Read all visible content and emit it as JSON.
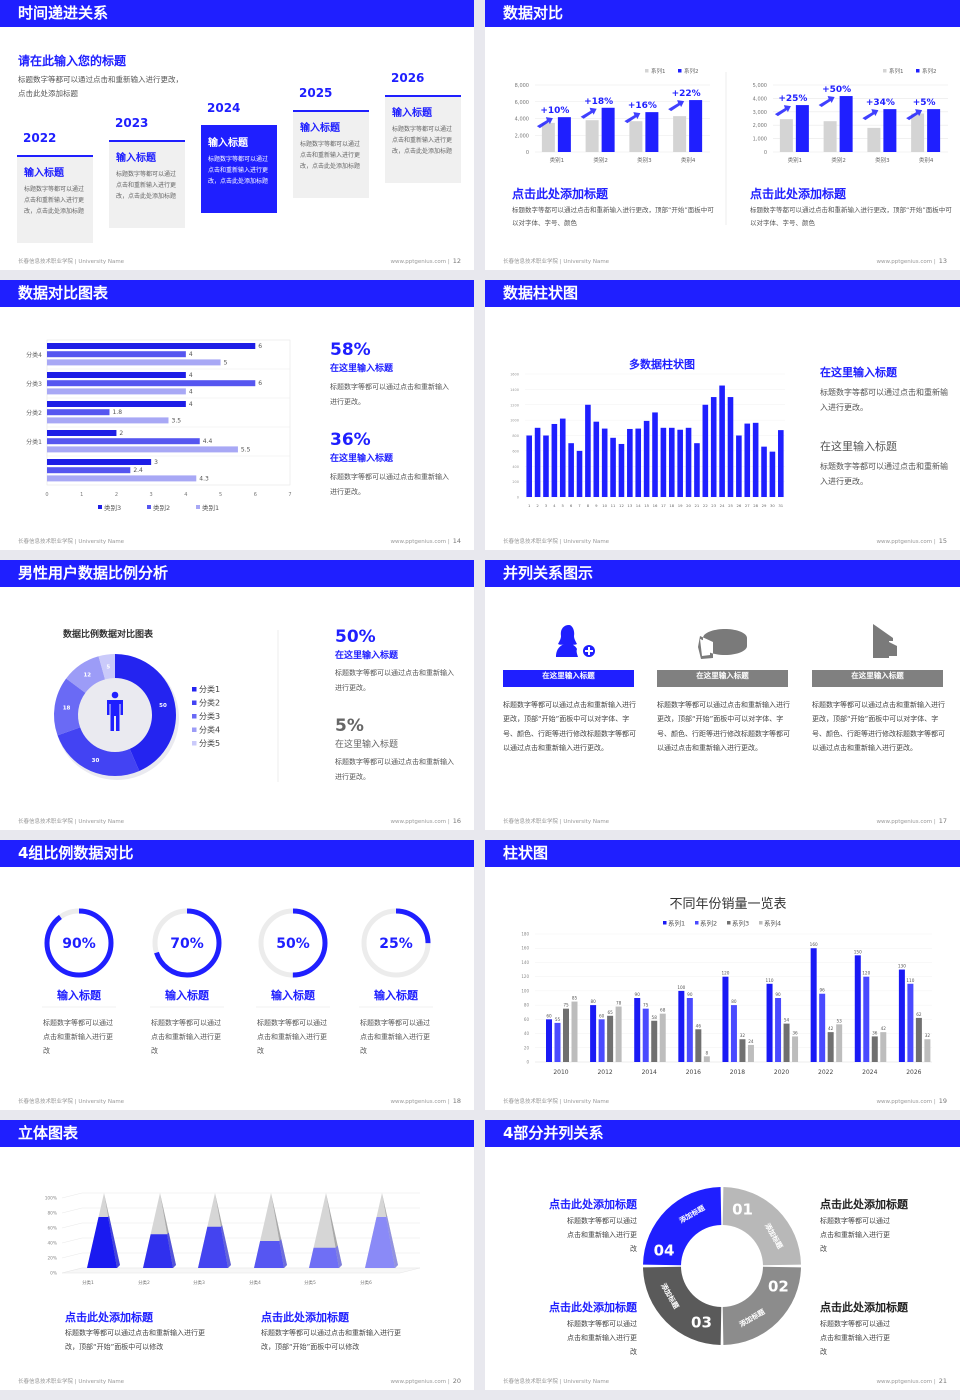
{
  "colors": {
    "primary": "#1f1fff",
    "light_gray": "#d4d4d4",
    "mid_gray": "#808080",
    "background": "#e8e8ee"
  },
  "footer": {
    "school": "长春信息技术职业学院 | University Name",
    "site": "www.pptgenius.com |"
  },
  "slides": [
    {
      "title": "时间递进关系",
      "page": "12",
      "heading": "请在此输入您的标题",
      "desc": "标题数字等都可以通过点击和重新输入进行更改，点击此处添加标题",
      "items": [
        {
          "year": "2022",
          "title": "输入标题",
          "desc": "标题数字等都可以通过点击和重新输入进行更改，点击此处添加标题"
        },
        {
          "year": "2023",
          "title": "输入标题",
          "desc": "标题数字等都可以通过点击和重新输入进行更改，点击此处添加标题"
        },
        {
          "year": "2024",
          "title": "输入标题",
          "desc": "标题数字等都可以通过点击和重新输入进行更改，点击此处添加标题"
        },
        {
          "year": "2025",
          "title": "输入标题",
          "desc": "标题数字等都可以通过点击和重新输入进行更改，点击此处添加标题"
        },
        {
          "year": "2026",
          "title": "输入标题",
          "desc": "标题数字等都可以通过点击和重新输入进行更改，点击此处添加标题"
        }
      ]
    },
    {
      "title": "数据对比",
      "page": "13",
      "blocks": [
        {
          "heading": "点击此处添加标题",
          "desc": "标题数字等都可以通过点击和重新输入进行更改，顶部“开始”面板中可以对字体、字号、颜色"
        },
        {
          "heading": "点击此处添加标题",
          "desc": "标题数字等都可以通过点击和重新输入进行更改，顶部“开始”面板中可以对字体、字号、颜色"
        }
      ]
    },
    {
      "title": "数据对比图表",
      "page": "14",
      "stats": [
        {
          "value": "58%",
          "title": "在这里输入标题",
          "desc": "标题数字等都可以通过点击和重新输入进行更改。"
        },
        {
          "value": "36%",
          "title": "在这里输入标题",
          "desc": "标题数字等都可以通过点击和重新输入进行更改。"
        }
      ]
    },
    {
      "title": "数据柱状图",
      "page": "15",
      "texts": [
        {
          "title": "在这里输入标题",
          "desc": "标题数字等都可以通过点击和重新输入进行更改。"
        },
        {
          "title": "在这里输入标题",
          "desc": "标题数字等都可以通过点击和重新输入进行更改。"
        }
      ]
    },
    {
      "title": "男性用户数据比例分析",
      "page": "16",
      "icon": "male-user-icon",
      "stats": [
        {
          "value": "50%",
          "title": "在这里输入标题",
          "desc": "标题数字等都可以通过点击和重新输入进行更改。"
        },
        {
          "value": "5%",
          "title": "在这里输入标题",
          "desc": "标题数字等都可以通过点击和重新输入进行更改。"
        }
      ]
    },
    {
      "title": "并列关系图示",
      "page": "17",
      "columns": [
        {
          "icon": "female-user-add-icon",
          "label": "在这里输入标题",
          "desc": "标题数字等都可以通过点击和重新输入进行更改，顶部“开始”面板中可以对字体、字号、颜色、行距等进行修改标题数字等都可以通过点击和重新输入进行更改。"
        },
        {
          "icon": "pie-chart-3d-icon",
          "label": "在这里输入标题",
          "desc": "标题数字等都可以通过点击和重新输入进行更改，顶部“开始”面板中可以对字体、字号、颜色、行距等进行修改标题数字等都可以通过点击和重新输入进行更改。"
        },
        {
          "icon": "building-icon",
          "label": "在这里输入标题",
          "desc": "标题数字等都可以通过点击和重新输入进行更改，顶部“开始”面板中可以对字体、字号、颜色、行距等进行修改标题数字等都可以通过点击和重新输入进行更改。"
        }
      ]
    },
    {
      "title": "4组比例数据对比",
      "page": "18",
      "items": [
        {
          "label": "90%",
          "title": "输入标题",
          "desc": "标题数字等都可以通过点击和重新输入进行更改"
        },
        {
          "label": "70%",
          "title": "输入标题",
          "desc": "标题数字等都可以通过点击和重新输入进行更改"
        },
        {
          "label": "50%",
          "title": "输入标题",
          "desc": "标题数字等都可以通过点击和重新输入进行更改"
        },
        {
          "label": "25%",
          "title": "输入标题",
          "desc": "标题数字等都可以通过点击和重新输入进行更改"
        }
      ]
    },
    {
      "title": "柱状图",
      "page": "19"
    },
    {
      "title": "立体图表",
      "page": "20",
      "blocks": [
        {
          "heading": "点击此处添加标题",
          "desc": "标题数字等都可以通过点击和重新输入进行更改，顶部“开始”面板中可以修改"
        },
        {
          "heading": "点击此处添加标题",
          "desc": "标题数字等都可以通过点击和重新输入进行更改，顶部“开始”面板中可以修改"
        }
      ]
    },
    {
      "title": "4部分并列关系",
      "page": "21",
      "segments": [
        {
          "number": "01",
          "label": "添加标题",
          "color": "#b8b8b8"
        },
        {
          "number": "02",
          "label": "添加标题",
          "color": "#8c8c8c"
        },
        {
          "number": "03",
          "label": "添加标题",
          "color": "#5a5a5a"
        },
        {
          "number": "04",
          "label": "添加标题",
          "color": "#1f1fff"
        }
      ],
      "texts": [
        {
          "title": "点击此处添加标题",
          "desc": "标题数字等都可以通过点击和重新输入进行更改"
        },
        {
          "title": "点击此处添加标题",
          "desc": "标题数字等都可以通过点击和重新输入进行更改"
        },
        {
          "title": "点击此处添加标题",
          "desc": "标题数字等都可以通过点击和重新输入进行更改"
        },
        {
          "title": "点击此处添加标题",
          "desc": "标题数字等都可以通过点击和重新输入进行更改"
        }
      ]
    }
  ],
  "chart_data": [
    {
      "type": "bar",
      "categories": [
        "类别1",
        "类别2",
        "类别3",
        "类别4"
      ],
      "series": [
        {
          "name": "系列1",
          "values": [
            3480,
            3800,
            3680,
            4280
          ],
          "color": "#d4d4d4"
        },
        {
          "name": "系列2",
          "values": [
            4160,
            5280,
            4760,
            6200
          ],
          "color": "#1f1fff"
        }
      ],
      "annotations": [
        "+10%",
        "+18%",
        "+16%",
        "+22%"
      ],
      "ylim": [
        0,
        8000
      ],
      "yticks": [
        0,
        2000,
        4000,
        6000,
        8000
      ],
      "ytick_labels": [
        "0",
        "2,000",
        "4,000",
        "6,000",
        "8,000"
      ],
      "grid": true,
      "legend": "top-right"
    },
    {
      "type": "bar",
      "categories": [
        "类别1",
        "类别2",
        "类别3",
        "类别4"
      ],
      "series": [
        {
          "name": "系列1",
          "values": [
            2450,
            2300,
            1800,
            2875
          ],
          "color": "#d4d4d4"
        },
        {
          "name": "系列2",
          "values": [
            3500,
            4175,
            3200,
            3200
          ],
          "color": "#1f1fff"
        }
      ],
      "annotations": [
        "+25%",
        "+50%",
        "+34%",
        "+5%"
      ],
      "ylim": [
        0,
        5000
      ],
      "yticks": [
        0,
        1000,
        2000,
        3000,
        4000,
        5000
      ],
      "ytick_labels": [
        "0",
        "1,000",
        "2,000",
        "3,000",
        "4,000",
        "5,000"
      ],
      "grid": true,
      "legend": "top-right"
    },
    {
      "type": "bar",
      "orientation": "horizontal",
      "categories": [
        "",
        "分类1",
        "分类2",
        "分类3",
        "分类4"
      ],
      "series": [
        {
          "name": "类别3",
          "values": [
            3,
            2,
            4,
            4,
            6
          ],
          "color": "#1e1ee6"
        },
        {
          "name": "类别2",
          "values": [
            2.4,
            4.4,
            1.8,
            6,
            4
          ],
          "color": "#5656f0"
        },
        {
          "name": "类别1",
          "values": [
            4.3,
            5.5,
            3.5,
            4,
            5
          ],
          "color": "#a8a8f5"
        }
      ],
      "value_labels": [
        [
          "3",
          "2",
          "4",
          "4",
          "6"
        ],
        [
          "2.4",
          "4.4",
          "1.8",
          "6",
          "4"
        ],
        [
          "4.3",
          "5.5",
          "3.5",
          "4",
          "5"
        ]
      ],
      "xlim": [
        0,
        7
      ],
      "xtick_labels": [
        "0",
        "1",
        "2",
        "3",
        "4",
        "5",
        "6",
        "7"
      ],
      "legend": "bottom"
    },
    {
      "type": "bar",
      "title": "多数据柱状图",
      "categories": [
        "1",
        "2",
        "3",
        "4",
        "5",
        "6",
        "7",
        "8",
        "9",
        "10",
        "11",
        "12",
        "13",
        "14",
        "15",
        "16",
        "17",
        "18",
        "19",
        "20",
        "21",
        "22",
        "23",
        "24",
        "25",
        "26",
        "27",
        "28",
        "29",
        "30",
        "31"
      ],
      "values": [
        800,
        900,
        800,
        950,
        1020,
        700,
        600,
        1200,
        980,
        890,
        770,
        690,
        885,
        890,
        990,
        1100,
        900,
        900,
        875,
        900,
        700,
        1200,
        1300,
        1450,
        1300,
        800,
        955,
        965,
        655,
        590,
        870
      ],
      "ylim": [
        0,
        1600
      ],
      "ytick_labels": [
        "0",
        "200",
        "400",
        "600",
        "800",
        "1000",
        "1200",
        "1400",
        "1600"
      ],
      "color": "#1f1fff"
    },
    {
      "type": "pie",
      "donut": true,
      "title": "数据比例数据对比图表",
      "categories": [
        "分类1",
        "分类2",
        "分类3",
        "分类4",
        "分类5"
      ],
      "values": [
        50,
        30,
        18,
        12,
        5
      ],
      "value_labels": [
        "50",
        "30",
        "18",
        "12",
        "5"
      ],
      "colors": [
        "#2424f0",
        "#4343f3",
        "#6a6af5",
        "#9c9cf7",
        "#cacafa"
      ],
      "legend": "right"
    },
    {
      "type": "pie",
      "subtype": "progress-rings",
      "values": [
        90,
        70,
        50,
        25
      ],
      "unit": "%"
    },
    {
      "type": "bar",
      "title": "不同年份销量一览表",
      "categories": [
        "2010",
        "2012",
        "2014",
        "2016",
        "2018",
        "2020",
        "2022",
        "2024",
        "2026"
      ],
      "series": [
        {
          "name": "系列1",
          "values": [
            60,
            80,
            90,
            100,
            120,
            110,
            160,
            150,
            130
          ],
          "color": "#1a1af5"
        },
        {
          "name": "系列2",
          "values": [
            55,
            60,
            75,
            90,
            80,
            90,
            96,
            120,
            110
          ],
          "color": "#4a4aff"
        },
        {
          "name": "系列3",
          "values": [
            75,
            65,
            58,
            46,
            32,
            54,
            42,
            36,
            62
          ],
          "color": "#707070"
        },
        {
          "name": "系列4",
          "values": [
            85,
            78,
            68,
            8,
            24,
            36,
            53,
            42,
            32
          ],
          "color": "#bdbdbd"
        }
      ],
      "ylim": [
        0,
        180
      ],
      "ytick_labels": [
        "0",
        "20",
        "40",
        "60",
        "80",
        "100",
        "120",
        "140",
        "160",
        "180"
      ],
      "legend": "top",
      "grid": true
    },
    {
      "type": "bar",
      "subtype": "3d-pyramid",
      "categories": [
        "分类1",
        "分类2",
        "分类3",
        "分类4",
        "分类5",
        "分类6"
      ],
      "values": [
        68,
        45,
        55,
        36,
        27,
        68
      ],
      "ylim": [
        0,
        100
      ],
      "ytick_labels": [
        "0%",
        "20%",
        "40%",
        "60%",
        "80%",
        "100%"
      ],
      "colors": [
        "#1a1af0",
        "#3030ee",
        "#4444f0",
        "#5656f2",
        "#6f6ff5",
        "#8a8af7"
      ]
    }
  ]
}
